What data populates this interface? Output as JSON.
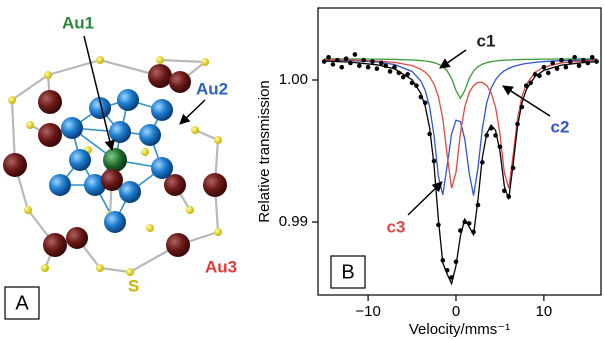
{
  "panel_a": {
    "label": "A",
    "atom_labels": [
      {
        "text": "Au1",
        "color": "#2a8a3a"
      },
      {
        "text": "Au2",
        "color": "#2f5fbf"
      },
      {
        "text": "Au3",
        "color": "#e03a3a"
      },
      {
        "text": "S",
        "color": "#c8b400"
      }
    ]
  },
  "chart_data": {
    "type": "line",
    "panel_label": "B",
    "xlabel": "Velocity/mms⁻¹",
    "ylabel": "Relative transmission",
    "xlim": [
      -15.7,
      16.5
    ],
    "ylim": [
      0.98486,
      1.00507
    ],
    "xticks": [
      {
        "value": -10,
        "label": "−10"
      },
      0,
      10
    ],
    "yticks": [
      0.99,
      {
        "value": 1,
        "label": "1.00"
      }
    ],
    "grid": false,
    "x": [
      -15,
      -12,
      -9,
      -7,
      -5,
      -4,
      -3.5,
      -3,
      -2.5,
      -2,
      -1.5,
      -1,
      -0.5,
      0,
      0.5,
      1,
      1.5,
      2,
      2.5,
      3,
      3.5,
      4,
      4.5,
      5,
      5.5,
      6,
      6.5,
      7,
      7.5,
      8,
      9,
      10,
      12,
      15,
      16
    ],
    "series": [
      {
        "color": "#3a9a3a",
        "values": [
          1.00149,
          1.00148,
          1.00147,
          1.00145,
          1.00141,
          1.00137,
          1.00134,
          1.00129,
          1.00122,
          1.00111,
          1.00094,
          1.00064,
          1.0001,
          0.99926,
          0.9987,
          0.99926,
          1.0001,
          1.00064,
          1.00094,
          1.00111,
          1.00122,
          1.00129,
          1.00134,
          1.00137,
          1.00139,
          1.00141,
          1.00142,
          1.00144,
          1.00144,
          1.00145,
          1.00146,
          1.00147,
          1.00148,
          1.00149,
          1.00149
        ]
      },
      {
        "color": "#3355cc",
        "values": [
          1.00142,
          1.00137,
          1.00127,
          1.00109,
          1.0006,
          0.99993,
          0.99926,
          0.99811,
          0.9961,
          0.99321,
          0.99191,
          0.99398,
          0.99619,
          0.99717,
          0.99707,
          0.99584,
          0.99345,
          0.99186,
          0.9938,
          0.99659,
          0.9984,
          0.99942,
          1.00002,
          1.0004,
          1.00065,
          1.00082,
          1.00094,
          1.00103,
          1.00111,
          1.00116,
          1.00124,
          1.0013,
          1.00136,
          1.00141,
          1.00143
        ]
      },
      {
        "color": "#e04848",
        "values": [
          1.00144,
          1.00141,
          1.00134,
          1.00124,
          1.00102,
          1.00076,
          1.00055,
          1.00023,
          0.99971,
          0.99883,
          0.99727,
          0.9947,
          0.99238,
          0.99349,
          0.99623,
          0.9981,
          0.99911,
          0.99961,
          0.99983,
          0.99983,
          0.99961,
          0.99911,
          0.9981,
          0.99623,
          0.99349,
          0.99238,
          0.9947,
          0.99727,
          0.99883,
          0.99971,
          1.00055,
          1.00091,
          1.00121,
          1.00136,
          1.00138
        ]
      },
      {
        "color": "#000000",
        "values": [
          1.00134,
          1.00126,
          1.00107,
          1.00079,
          1.00003,
          0.99906,
          0.99815,
          0.99663,
          0.99403,
          0.99016,
          0.98712,
          0.98632,
          0.98566,
          0.98692,
          0.989,
          0.9902,
          0.98966,
          0.98911,
          0.99156,
          0.99454,
          0.99623,
          0.99682,
          0.99646,
          0.995,
          0.99253,
          0.9916,
          0.99406,
          0.99674,
          0.99838,
          0.99932,
          1.00025,
          1.00068,
          1.00105,
          1.00126,
          1.00129
        ]
      },
      {
        "type": "scatter",
        "color": "#000000",
        "x": [
          -15,
          -14.5,
          -14,
          -13.5,
          -13,
          -12.5,
          -12,
          -11.5,
          -11,
          -10.5,
          -10,
          -9.5,
          -9,
          -8.5,
          -8,
          -7.5,
          -7,
          -6.5,
          -6,
          -5.5,
          -5,
          -4.5,
          -4,
          -3.5,
          -3,
          -2.5,
          -2,
          -1.5,
          -1,
          -0.5,
          0,
          0.5,
          1,
          1.5,
          2,
          2.5,
          3,
          3.5,
          4,
          4.5,
          5,
          5.5,
          6,
          6.5,
          7,
          7.5,
          8,
          8.5,
          9,
          9.5,
          10,
          10.5,
          11,
          11.5,
          12,
          12.5,
          13,
          13.5,
          14,
          14.5,
          15,
          15.5,
          16
        ],
        "values": [
          1.0013,
          1.0016,
          1.0011,
          1.0014,
          1.0009,
          1.0015,
          1.0012,
          1.0018,
          1.001,
          1.0014,
          1.0009,
          1.0013,
          1.0008,
          1.0012,
          1.001,
          1.0006,
          1.0009,
          1.0005,
          1.0002,
          1.0004,
          0.9998,
          0.9996,
          0.9988,
          0.9984,
          0.9962,
          0.9943,
          0.9898,
          0.9873,
          0.9866,
          0.9861,
          0.9872,
          0.9894,
          0.99,
          0.9899,
          0.9893,
          0.9912,
          0.9942,
          0.9961,
          0.9966,
          0.9961,
          0.9953,
          0.9922,
          0.9918,
          0.9938,
          0.9969,
          0.9981,
          0.9996,
          0.9998,
          1.0004,
          1.0003,
          1.0009,
          1.0005,
          1.0012,
          1.0008,
          1.0014,
          1.0009,
          1.0013,
          1.0016,
          1.001,
          1.0014,
          1.0012,
          1.0016,
          1.0013
        ]
      }
    ],
    "annotations": [
      {
        "text": "c1",
        "color": "#222222"
      },
      {
        "text": "c2",
        "color": "#3355cc"
      },
      {
        "text": "c3",
        "color": "#e04848"
      }
    ]
  }
}
